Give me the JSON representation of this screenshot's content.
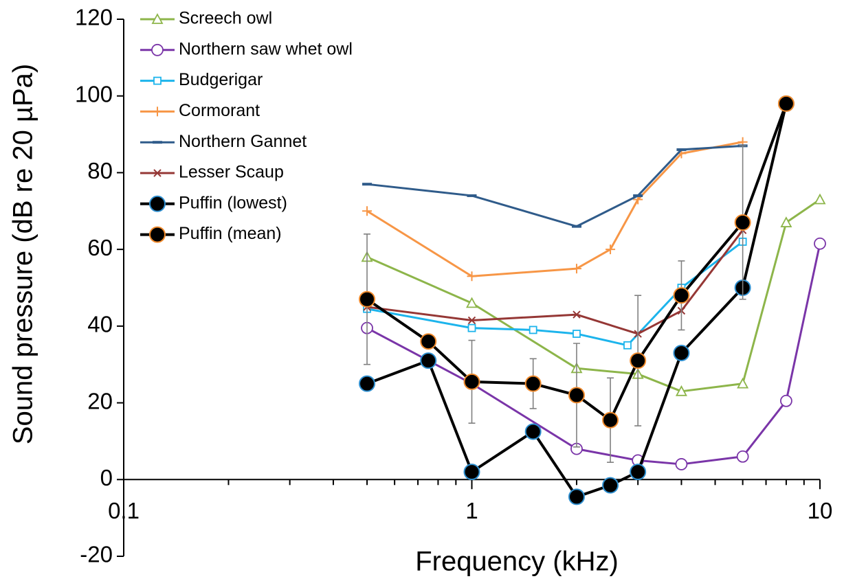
{
  "chart_data": {
    "type": "line",
    "xlabel": "Frequency (kHz)",
    "ylabel": "Sound pressure (dB re 20 µPa)",
    "xscale": "log",
    "xlim": [
      0.1,
      10
    ],
    "xticks": [
      0.1,
      1,
      10
    ],
    "xminorticks": [
      0.2,
      0.3,
      0.4,
      0.5,
      0.6,
      0.7,
      0.8,
      0.9,
      2,
      3,
      4,
      5,
      6,
      7,
      8,
      9
    ],
    "ylim": [
      -20,
      120
    ],
    "yticks": [
      -20,
      0,
      20,
      40,
      60,
      80,
      100,
      120
    ],
    "legend": "upper left",
    "series": [
      {
        "name": "Screech owl",
        "color": "#8db54a",
        "marker": "triangle",
        "x": [
          0.5,
          1,
          2,
          3,
          4,
          6,
          8,
          10
        ],
        "values": [
          58,
          46,
          29,
          27.5,
          23,
          25,
          67,
          73
        ]
      },
      {
        "name": "Northern saw whet owl",
        "color": "#7a35a8",
        "marker": "circle",
        "x": [
          0.5,
          1,
          2,
          3,
          4,
          6,
          8,
          10
        ],
        "values": [
          39.5,
          25,
          8,
          5,
          4,
          6,
          20.5,
          61.5
        ]
      },
      {
        "name": "Budgerigar",
        "color": "#1cb4ec",
        "marker": "square",
        "x": [
          0.5,
          1,
          1.5,
          2,
          2.8,
          4,
          6
        ],
        "values": [
          44.5,
          39.5,
          39,
          38,
          35,
          50,
          62
        ]
      },
      {
        "name": "Cormorant",
        "color": "#f79646",
        "marker": "plus",
        "x": [
          0.5,
          1,
          2,
          2.5,
          3,
          4,
          6
        ],
        "values": [
          70,
          53,
          55,
          60,
          73,
          85,
          88
        ]
      },
      {
        "name": "Northern Gannet",
        "color": "#2f5b8a",
        "marker": "dash",
        "x": [
          0.5,
          1,
          2,
          3,
          4,
          6
        ],
        "values": [
          77,
          74,
          66,
          74,
          86,
          87
        ]
      },
      {
        "name": "Lesser Scaup",
        "color": "#953735",
        "marker": "x",
        "x": [
          0.5,
          1,
          2,
          3,
          4,
          6
        ],
        "values": [
          45,
          41.5,
          43,
          38,
          44,
          65
        ]
      },
      {
        "name": "Puffin (lowest)",
        "color": "#000000",
        "marker_edge": "#2e8fd0",
        "marker": "big-circle",
        "x": [
          0.5,
          0.75,
          1,
          1.5,
          2,
          2.5,
          3,
          4,
          6,
          8
        ],
        "values": [
          25,
          31,
          2,
          12.5,
          -4.5,
          -1.5,
          2,
          33,
          50,
          98
        ]
      },
      {
        "name": "Puffin (mean)",
        "color": "#000000",
        "marker_edge": "#f08a2c",
        "marker": "big-circle",
        "x": [
          0.5,
          0.75,
          1,
          1.5,
          2,
          2.5,
          3,
          4,
          6,
          8
        ],
        "values": [
          47,
          36,
          25.5,
          25,
          22,
          15.5,
          31,
          48,
          67,
          98
        ],
        "errors": [
          17,
          null,
          10.8,
          6.5,
          13.5,
          11,
          17,
          9,
          20,
          null
        ],
        "error_color": "#808080"
      }
    ]
  }
}
